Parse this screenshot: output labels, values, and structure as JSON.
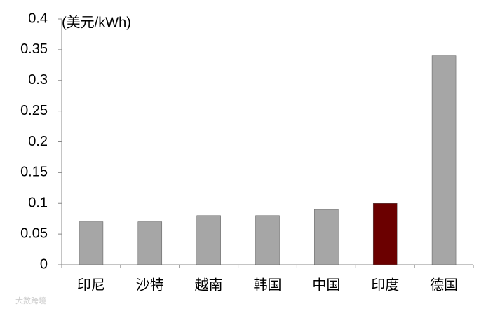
{
  "chart_data": {
    "type": "bar",
    "y_label": "(美元/kWh)",
    "categories": [
      "印尼",
      "沙特",
      "越南",
      "韩国",
      "中国",
      "印度",
      "德国"
    ],
    "values": [
      0.07,
      0.07,
      0.08,
      0.08,
      0.09,
      0.1,
      0.34
    ],
    "colors": [
      "#a6a6a6",
      "#a6a6a6",
      "#a6a6a6",
      "#a6a6a6",
      "#a6a6a6",
      "#6b0000",
      "#a6a6a6"
    ],
    "ylim": [
      0,
      0.4
    ],
    "yticks": [
      0,
      0.05,
      0.1,
      0.15,
      0.2,
      0.25,
      0.3,
      0.35,
      0.4
    ],
    "grid": false,
    "watermark": "大数跨境"
  }
}
